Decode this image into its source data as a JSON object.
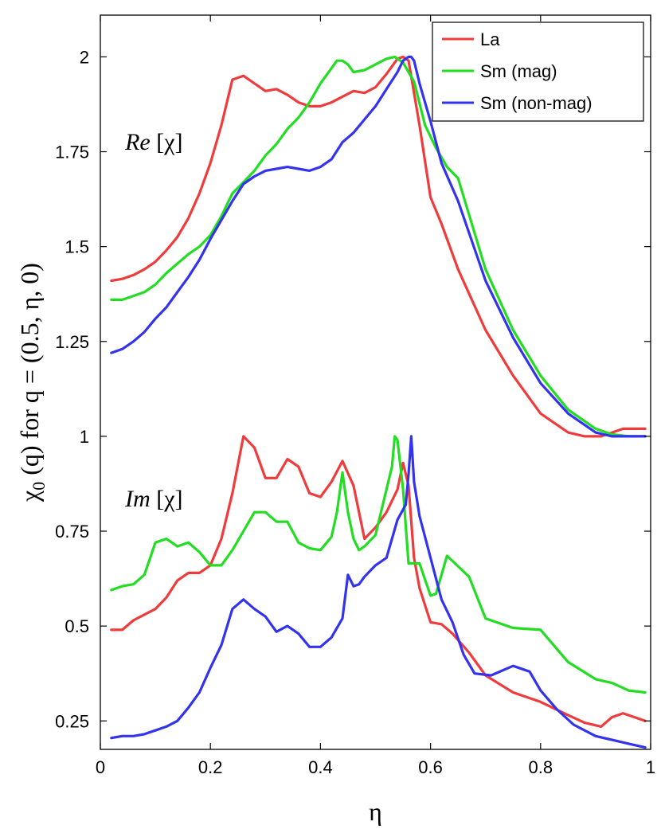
{
  "chart_data": {
    "type": "line",
    "xlabel": "η",
    "ylabel_main": "χ",
    "ylabel_sub": "0",
    "ylabel_rest": " (q) for q = (0.5, η, 0)",
    "xlim": [
      0,
      1
    ],
    "ylim": [
      0.175,
      2.11
    ],
    "xticks": [
      {
        "value": 0,
        "label": "0"
      },
      {
        "value": 0.2,
        "label": "0.2"
      },
      {
        "value": 0.4,
        "label": "0.4"
      },
      {
        "value": 0.6,
        "label": "0.6"
      },
      {
        "value": 0.8,
        "label": "0.8"
      },
      {
        "value": 1,
        "label": "1"
      }
    ],
    "yticks": [
      {
        "value": 0.25,
        "label": "0.25"
      },
      {
        "value": 0.5,
        "label": "0.5"
      },
      {
        "value": 0.75,
        "label": "0.75"
      },
      {
        "value": 1,
        "label": "1"
      },
      {
        "value": 1.25,
        "label": "1.25"
      },
      {
        "value": 1.5,
        "label": "1.5"
      },
      {
        "value": 1.75,
        "label": "1.75"
      },
      {
        "value": 2,
        "label": "2"
      }
    ],
    "annotations": [
      {
        "label": "Re",
        "bracket": " [χ]",
        "x": 0.045,
        "y": 1.755
      },
      {
        "label": "Im",
        "bracket": " [χ]",
        "x": 0.045,
        "y": 0.815
      }
    ],
    "legend_position": "top-right",
    "series": [
      {
        "name": "La",
        "part": "Re",
        "color": "#ef3b3b",
        "x": [
          0.02,
          0.04,
          0.06,
          0.08,
          0.1,
          0.12,
          0.14,
          0.16,
          0.18,
          0.2,
          0.22,
          0.24,
          0.26,
          0.28,
          0.3,
          0.32,
          0.34,
          0.36,
          0.38,
          0.4,
          0.42,
          0.44,
          0.46,
          0.48,
          0.5,
          0.52,
          0.54,
          0.55,
          0.56,
          0.58,
          0.6,
          0.62,
          0.65,
          0.7,
          0.75,
          0.8,
          0.85,
          0.88,
          0.91,
          0.93,
          0.95,
          0.99
        ],
        "y": [
          1.41,
          1.415,
          1.425,
          1.44,
          1.46,
          1.49,
          1.525,
          1.575,
          1.64,
          1.72,
          1.82,
          1.94,
          1.95,
          1.93,
          1.91,
          1.915,
          1.9,
          1.88,
          1.87,
          1.87,
          1.88,
          1.895,
          1.91,
          1.905,
          1.92,
          1.955,
          1.995,
          2.0,
          1.99,
          1.82,
          1.63,
          1.56,
          1.44,
          1.28,
          1.16,
          1.06,
          1.01,
          1.0,
          1.0,
          1.01,
          1.02,
          1.02
        ]
      },
      {
        "name": "Sm (mag)",
        "part": "Re",
        "color": "#22dd22",
        "x": [
          0.02,
          0.04,
          0.06,
          0.08,
          0.1,
          0.12,
          0.14,
          0.16,
          0.18,
          0.2,
          0.22,
          0.24,
          0.26,
          0.28,
          0.3,
          0.32,
          0.34,
          0.36,
          0.38,
          0.4,
          0.42,
          0.43,
          0.44,
          0.45,
          0.46,
          0.48,
          0.5,
          0.52,
          0.535,
          0.55,
          0.57,
          0.59,
          0.61,
          0.63,
          0.65,
          0.7,
          0.75,
          0.8,
          0.85,
          0.9,
          0.93,
          0.96,
          0.99
        ],
        "y": [
          1.36,
          1.36,
          1.37,
          1.38,
          1.4,
          1.43,
          1.455,
          1.48,
          1.5,
          1.53,
          1.58,
          1.64,
          1.67,
          1.7,
          1.74,
          1.77,
          1.81,
          1.84,
          1.88,
          1.93,
          1.97,
          1.99,
          1.99,
          1.98,
          1.96,
          1.965,
          1.98,
          1.995,
          2.0,
          1.985,
          1.935,
          1.82,
          1.76,
          1.71,
          1.68,
          1.44,
          1.28,
          1.16,
          1.07,
          1.02,
          1.005,
          1.0,
          1.0
        ]
      },
      {
        "name": "Sm (non-mag)",
        "part": "Re",
        "color": "#3333ee",
        "x": [
          0.02,
          0.04,
          0.06,
          0.08,
          0.1,
          0.12,
          0.14,
          0.16,
          0.18,
          0.2,
          0.22,
          0.24,
          0.26,
          0.28,
          0.3,
          0.32,
          0.34,
          0.36,
          0.38,
          0.4,
          0.42,
          0.44,
          0.46,
          0.48,
          0.5,
          0.52,
          0.54,
          0.55,
          0.56,
          0.565,
          0.57,
          0.58,
          0.6,
          0.62,
          0.65,
          0.7,
          0.75,
          0.8,
          0.85,
          0.9,
          0.93,
          0.96,
          0.99
        ],
        "y": [
          1.22,
          1.23,
          1.25,
          1.275,
          1.31,
          1.34,
          1.38,
          1.42,
          1.465,
          1.52,
          1.57,
          1.62,
          1.665,
          1.685,
          1.7,
          1.705,
          1.71,
          1.705,
          1.7,
          1.71,
          1.73,
          1.775,
          1.8,
          1.835,
          1.87,
          1.915,
          1.96,
          1.99,
          2.0,
          2.0,
          1.99,
          1.93,
          1.83,
          1.72,
          1.62,
          1.41,
          1.26,
          1.14,
          1.06,
          1.01,
          1.0,
          1.0,
          1.0
        ]
      },
      {
        "name": "La",
        "part": "Im",
        "color": "#ef3b3b",
        "x": [
          0.02,
          0.04,
          0.06,
          0.08,
          0.1,
          0.12,
          0.14,
          0.16,
          0.18,
          0.2,
          0.22,
          0.24,
          0.26,
          0.28,
          0.3,
          0.32,
          0.34,
          0.36,
          0.38,
          0.4,
          0.42,
          0.44,
          0.46,
          0.48,
          0.5,
          0.52,
          0.54,
          0.55,
          0.56,
          0.57,
          0.58,
          0.6,
          0.62,
          0.64,
          0.67,
          0.7,
          0.75,
          0.8,
          0.85,
          0.88,
          0.91,
          0.93,
          0.95,
          0.97,
          0.99
        ],
        "y": [
          0.49,
          0.49,
          0.515,
          0.53,
          0.545,
          0.575,
          0.62,
          0.64,
          0.64,
          0.66,
          0.73,
          0.85,
          1.0,
          0.97,
          0.89,
          0.89,
          0.94,
          0.92,
          0.85,
          0.84,
          0.88,
          0.935,
          0.87,
          0.73,
          0.76,
          0.8,
          0.86,
          0.93,
          0.87,
          0.68,
          0.6,
          0.51,
          0.505,
          0.48,
          0.43,
          0.37,
          0.325,
          0.3,
          0.265,
          0.245,
          0.235,
          0.26,
          0.27,
          0.26,
          0.25
        ]
      },
      {
        "name": "Sm (mag)",
        "part": "Im",
        "color": "#22dd22",
        "x": [
          0.02,
          0.04,
          0.06,
          0.08,
          0.1,
          0.12,
          0.14,
          0.16,
          0.18,
          0.2,
          0.22,
          0.24,
          0.26,
          0.28,
          0.3,
          0.32,
          0.34,
          0.36,
          0.38,
          0.4,
          0.42,
          0.43,
          0.44,
          0.45,
          0.46,
          0.47,
          0.48,
          0.5,
          0.52,
          0.53,
          0.535,
          0.54,
          0.55,
          0.56,
          0.58,
          0.6,
          0.61,
          0.63,
          0.67,
          0.7,
          0.75,
          0.8,
          0.85,
          0.9,
          0.93,
          0.96,
          0.99
        ],
        "y": [
          0.595,
          0.605,
          0.61,
          0.635,
          0.72,
          0.73,
          0.71,
          0.72,
          0.695,
          0.66,
          0.66,
          0.7,
          0.75,
          0.8,
          0.8,
          0.775,
          0.775,
          0.72,
          0.705,
          0.7,
          0.735,
          0.8,
          0.905,
          0.8,
          0.73,
          0.7,
          0.71,
          0.74,
          0.86,
          0.92,
          1.0,
          0.99,
          0.86,
          0.665,
          0.665,
          0.58,
          0.585,
          0.685,
          0.63,
          0.52,
          0.495,
          0.49,
          0.405,
          0.36,
          0.35,
          0.33,
          0.325
        ]
      },
      {
        "name": "Sm (non-mag)",
        "part": "Im",
        "color": "#3333ee",
        "x": [
          0.02,
          0.04,
          0.06,
          0.08,
          0.1,
          0.12,
          0.14,
          0.16,
          0.18,
          0.2,
          0.22,
          0.24,
          0.26,
          0.28,
          0.3,
          0.32,
          0.34,
          0.36,
          0.38,
          0.4,
          0.42,
          0.44,
          0.45,
          0.46,
          0.47,
          0.48,
          0.5,
          0.52,
          0.54,
          0.555,
          0.56,
          0.565,
          0.57,
          0.58,
          0.6,
          0.62,
          0.64,
          0.66,
          0.68,
          0.71,
          0.75,
          0.78,
          0.8,
          0.83,
          0.86,
          0.9,
          0.93,
          0.96,
          0.99
        ],
        "y": [
          0.205,
          0.21,
          0.21,
          0.215,
          0.225,
          0.235,
          0.25,
          0.285,
          0.325,
          0.39,
          0.45,
          0.545,
          0.57,
          0.545,
          0.525,
          0.485,
          0.5,
          0.48,
          0.445,
          0.445,
          0.47,
          0.52,
          0.635,
          0.605,
          0.61,
          0.63,
          0.66,
          0.68,
          0.78,
          0.82,
          0.9,
          1.0,
          0.88,
          0.79,
          0.68,
          0.57,
          0.51,
          0.425,
          0.375,
          0.37,
          0.395,
          0.38,
          0.33,
          0.28,
          0.24,
          0.21,
          0.2,
          0.19,
          0.18
        ]
      }
    ]
  }
}
